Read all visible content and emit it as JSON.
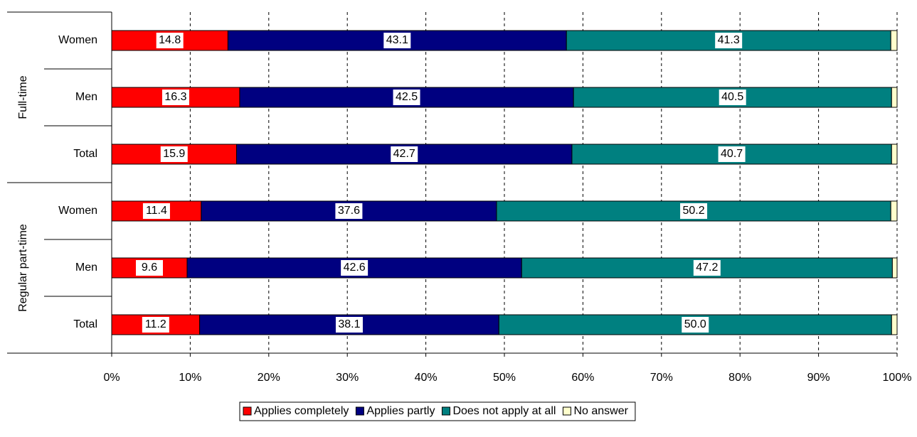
{
  "chart_data": {
    "type": "stacked-bar-horizontal",
    "groups": [
      {
        "name": "Full-time",
        "categories": [
          "Women",
          "Men",
          "Total"
        ]
      },
      {
        "name": "Regular part-time",
        "categories": [
          "Women",
          "Men",
          "Total"
        ]
      }
    ],
    "series": [
      {
        "name": "Applies completely",
        "color": "#ff0000",
        "values": [
          14.8,
          16.3,
          15.9,
          11.4,
          9.6,
          11.2
        ],
        "value_labels": [
          "14.8",
          "16.3",
          "15.9",
          "11.4",
          "9.6",
          "11.2"
        ]
      },
      {
        "name": "Applies partly",
        "color": "#000080",
        "values": [
          43.1,
          42.5,
          42.7,
          37.6,
          42.6,
          38.1
        ],
        "value_labels": [
          "43.1",
          "42.5",
          "42.7",
          "37.6",
          "42.6",
          "38.1"
        ]
      },
      {
        "name": "Does not apply at all",
        "color": "#008080",
        "values": [
          41.3,
          40.5,
          40.7,
          50.2,
          47.2,
          50.0
        ],
        "value_labels": [
          "41.3",
          "40.5",
          "40.7",
          "50.2",
          "47.2",
          "50.0"
        ]
      },
      {
        "name": "No answer",
        "color": "#ffffcc",
        "values": [
          0.8,
          0.7,
          0.7,
          0.8,
          0.6,
          0.7
        ]
      }
    ],
    "xlim": [
      0,
      100
    ],
    "xticks": [
      {
        "value": 0,
        "label": "0%"
      },
      {
        "value": 10,
        "label": "10%"
      },
      {
        "value": 20,
        "label": "20%"
      },
      {
        "value": 30,
        "label": "30%"
      },
      {
        "value": 40,
        "label": "40%"
      },
      {
        "value": 50,
        "label": "50%"
      },
      {
        "value": 60,
        "label": "60%"
      },
      {
        "value": 70,
        "label": "70%"
      },
      {
        "value": 80,
        "label": "80%"
      },
      {
        "value": 90,
        "label": "90%"
      },
      {
        "value": 100,
        "label": "100%"
      }
    ],
    "grid": true,
    "legend": "bottom"
  }
}
